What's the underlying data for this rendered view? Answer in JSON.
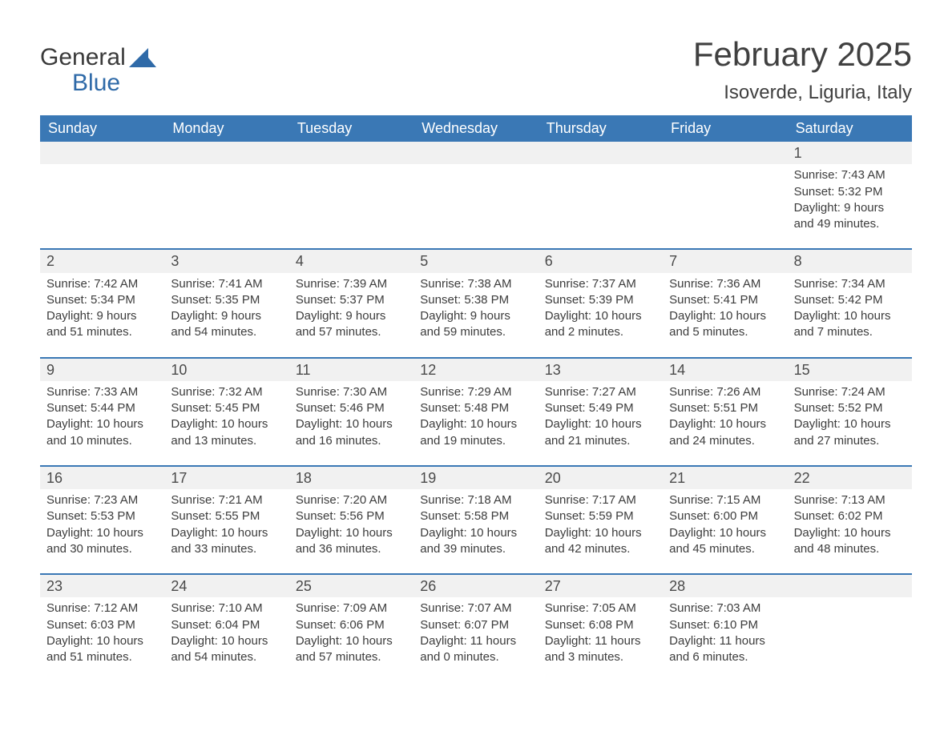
{
  "brand": {
    "word1": "General",
    "word2": "Blue",
    "logo_color": "#2f6aa8",
    "text_color": "#3a3a3a"
  },
  "header": {
    "month_title": "February 2025",
    "location": "Isoverde, Liguria, Italy"
  },
  "colors": {
    "header_row_bg": "#3a78b5",
    "header_row_fg": "#ffffff",
    "week_divider": "#3a78b5",
    "daynum_bg": "#f1f1f1",
    "body_text": "#3c3c3c",
    "page_bg": "#ffffff"
  },
  "layout": {
    "columns": 7,
    "rows": 5,
    "start_day_index": 6
  },
  "days_of_week": [
    "Sunday",
    "Monday",
    "Tuesday",
    "Wednesday",
    "Thursday",
    "Friday",
    "Saturday"
  ],
  "days": [
    {
      "n": 1,
      "sunrise": "7:43 AM",
      "sunset": "5:32 PM",
      "daylight": "9 hours and 49 minutes."
    },
    {
      "n": 2,
      "sunrise": "7:42 AM",
      "sunset": "5:34 PM",
      "daylight": "9 hours and 51 minutes."
    },
    {
      "n": 3,
      "sunrise": "7:41 AM",
      "sunset": "5:35 PM",
      "daylight": "9 hours and 54 minutes."
    },
    {
      "n": 4,
      "sunrise": "7:39 AM",
      "sunset": "5:37 PM",
      "daylight": "9 hours and 57 minutes."
    },
    {
      "n": 5,
      "sunrise": "7:38 AM",
      "sunset": "5:38 PM",
      "daylight": "9 hours and 59 minutes."
    },
    {
      "n": 6,
      "sunrise": "7:37 AM",
      "sunset": "5:39 PM",
      "daylight": "10 hours and 2 minutes."
    },
    {
      "n": 7,
      "sunrise": "7:36 AM",
      "sunset": "5:41 PM",
      "daylight": "10 hours and 5 minutes."
    },
    {
      "n": 8,
      "sunrise": "7:34 AM",
      "sunset": "5:42 PM",
      "daylight": "10 hours and 7 minutes."
    },
    {
      "n": 9,
      "sunrise": "7:33 AM",
      "sunset": "5:44 PM",
      "daylight": "10 hours and 10 minutes."
    },
    {
      "n": 10,
      "sunrise": "7:32 AM",
      "sunset": "5:45 PM",
      "daylight": "10 hours and 13 minutes."
    },
    {
      "n": 11,
      "sunrise": "7:30 AM",
      "sunset": "5:46 PM",
      "daylight": "10 hours and 16 minutes."
    },
    {
      "n": 12,
      "sunrise": "7:29 AM",
      "sunset": "5:48 PM",
      "daylight": "10 hours and 19 minutes."
    },
    {
      "n": 13,
      "sunrise": "7:27 AM",
      "sunset": "5:49 PM",
      "daylight": "10 hours and 21 minutes."
    },
    {
      "n": 14,
      "sunrise": "7:26 AM",
      "sunset": "5:51 PM",
      "daylight": "10 hours and 24 minutes."
    },
    {
      "n": 15,
      "sunrise": "7:24 AM",
      "sunset": "5:52 PM",
      "daylight": "10 hours and 27 minutes."
    },
    {
      "n": 16,
      "sunrise": "7:23 AM",
      "sunset": "5:53 PM",
      "daylight": "10 hours and 30 minutes."
    },
    {
      "n": 17,
      "sunrise": "7:21 AM",
      "sunset": "5:55 PM",
      "daylight": "10 hours and 33 minutes."
    },
    {
      "n": 18,
      "sunrise": "7:20 AM",
      "sunset": "5:56 PM",
      "daylight": "10 hours and 36 minutes."
    },
    {
      "n": 19,
      "sunrise": "7:18 AM",
      "sunset": "5:58 PM",
      "daylight": "10 hours and 39 minutes."
    },
    {
      "n": 20,
      "sunrise": "7:17 AM",
      "sunset": "5:59 PM",
      "daylight": "10 hours and 42 minutes."
    },
    {
      "n": 21,
      "sunrise": "7:15 AM",
      "sunset": "6:00 PM",
      "daylight": "10 hours and 45 minutes."
    },
    {
      "n": 22,
      "sunrise": "7:13 AM",
      "sunset": "6:02 PM",
      "daylight": "10 hours and 48 minutes."
    },
    {
      "n": 23,
      "sunrise": "7:12 AM",
      "sunset": "6:03 PM",
      "daylight": "10 hours and 51 minutes."
    },
    {
      "n": 24,
      "sunrise": "7:10 AM",
      "sunset": "6:04 PM",
      "daylight": "10 hours and 54 minutes."
    },
    {
      "n": 25,
      "sunrise": "7:09 AM",
      "sunset": "6:06 PM",
      "daylight": "10 hours and 57 minutes."
    },
    {
      "n": 26,
      "sunrise": "7:07 AM",
      "sunset": "6:07 PM",
      "daylight": "11 hours and 0 minutes."
    },
    {
      "n": 27,
      "sunrise": "7:05 AM",
      "sunset": "6:08 PM",
      "daylight": "11 hours and 3 minutes."
    },
    {
      "n": 28,
      "sunrise": "7:03 AM",
      "sunset": "6:10 PM",
      "daylight": "11 hours and 6 minutes."
    }
  ],
  "labels": {
    "sunrise_prefix": "Sunrise: ",
    "sunset_prefix": "Sunset: ",
    "daylight_prefix": "Daylight: "
  }
}
